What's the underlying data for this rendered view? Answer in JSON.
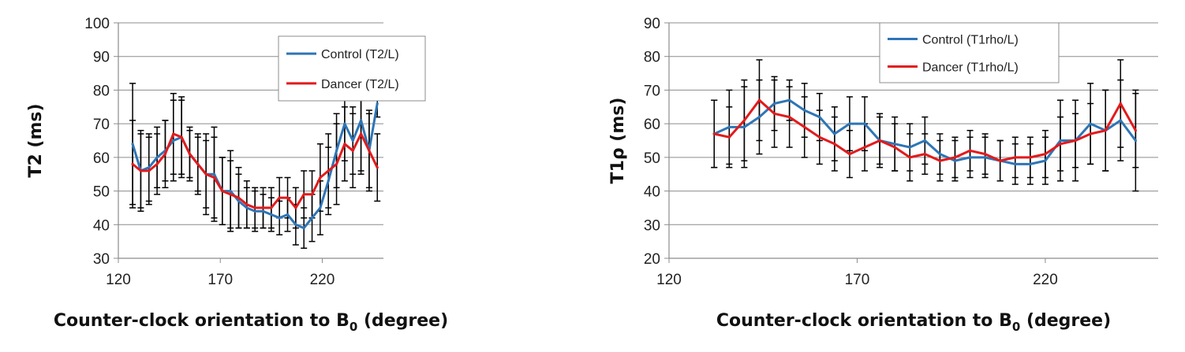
{
  "chart_data": [
    {
      "type": "line",
      "xlabel": "Counter-clock orientation to B",
      "xlabel_sub": "0",
      "xlabel_suffix": " (degree)",
      "ylabel": "T2 (ms)",
      "xlim": [
        120,
        250
      ],
      "ylim": [
        30,
        100
      ],
      "xticks": [
        120,
        170,
        220
      ],
      "yticks": [
        30,
        40,
        50,
        60,
        70,
        80,
        90,
        100
      ],
      "grid": "horizontal",
      "legend_position": "top-center",
      "series": [
        {
          "name": "Control (T2/L)",
          "color": "#2e75b6",
          "x": [
            127,
            131,
            135,
            139,
            143,
            147,
            151,
            155,
            159,
            163,
            167,
            171,
            175,
            179,
            183,
            187,
            191,
            195,
            199,
            203,
            207,
            211,
            215,
            219,
            223,
            227,
            231,
            235,
            239,
            243,
            247
          ],
          "y": [
            64,
            56,
            57,
            60,
            62,
            65,
            66,
            61,
            58,
            55,
            55,
            50,
            50,
            47,
            45,
            44,
            44,
            43,
            42,
            43,
            40,
            39,
            42,
            45,
            53,
            62,
            70,
            65,
            71,
            62,
            76
          ],
          "err": [
            18,
            11,
            10,
            9,
            9,
            12,
            12,
            7,
            8,
            12,
            14,
            10,
            12,
            8,
            6,
            6,
            5,
            5,
            5,
            5,
            6,
            6,
            7,
            8,
            10,
            11,
            11,
            10,
            15,
            12,
            4
          ]
        },
        {
          "name": "Dancer (T2/L)",
          "color": "#e31a1c",
          "x": [
            127,
            131,
            135,
            139,
            143,
            147,
            151,
            155,
            159,
            163,
            167,
            171,
            175,
            179,
            183,
            187,
            191,
            195,
            199,
            203,
            207,
            211,
            215,
            219,
            223,
            227,
            231,
            235,
            239,
            243,
            247
          ],
          "y": [
            58,
            56,
            56,
            58,
            61,
            67,
            66,
            61,
            58,
            55,
            54,
            50,
            49,
            48,
            46,
            45,
            45,
            45,
            48,
            48,
            45,
            49,
            49,
            54,
            56,
            58,
            64,
            62,
            67,
            62,
            57
          ],
          "err": [
            13,
            12,
            10,
            9,
            10,
            12,
            11,
            8,
            9,
            10,
            12,
            10,
            10,
            9,
            7,
            6,
            6,
            6,
            6,
            6,
            6,
            7,
            7,
            10,
            11,
            12,
            11,
            11,
            12,
            11,
            10
          ]
        }
      ]
    },
    {
      "type": "line",
      "xlabel": "Counter-clock orientation to B",
      "xlabel_sub": "0",
      "xlabel_suffix": " (degree)",
      "ylabel": "T1ρ (ms)",
      "xlim": [
        120,
        250
      ],
      "ylim": [
        20,
        90
      ],
      "xticks": [
        120,
        170,
        220
      ],
      "yticks": [
        20,
        30,
        40,
        50,
        60,
        70,
        80,
        90
      ],
      "grid": "horizontal",
      "legend_position": "top-right",
      "series": [
        {
          "name": "Control (T1rho/L)",
          "color": "#2e75b6",
          "x": [
            132,
            136,
            140,
            144,
            148,
            152,
            156,
            160,
            164,
            168,
            172,
            176,
            180,
            184,
            188,
            192,
            196,
            200,
            204,
            208,
            212,
            216,
            220,
            224,
            228,
            232,
            236,
            240,
            244
          ],
          "y": [
            57,
            59,
            59,
            62,
            66,
            67,
            64,
            62,
            57,
            60,
            60,
            55,
            54,
            53,
            55,
            51,
            49,
            50,
            50,
            49,
            48,
            48,
            49,
            55,
            55,
            60,
            58,
            61,
            55
          ],
          "err": [
            10,
            11,
            12,
            11,
            8,
            6,
            8,
            7,
            8,
            8,
            8,
            7,
            8,
            7,
            7,
            6,
            6,
            6,
            6,
            6,
            6,
            6,
            7,
            12,
            12,
            12,
            12,
            12,
            15
          ]
        },
        {
          "name": "Dancer (T1rho/L)",
          "color": "#e31a1c",
          "x": [
            132,
            136,
            140,
            144,
            148,
            152,
            156,
            160,
            164,
            168,
            172,
            176,
            180,
            184,
            188,
            192,
            196,
            200,
            204,
            208,
            212,
            216,
            220,
            224,
            228,
            232,
            236,
            240,
            244
          ],
          "y": [
            57,
            56,
            61,
            67,
            63,
            62,
            59,
            56,
            54,
            51,
            53,
            55,
            53,
            50,
            51,
            49,
            50,
            52,
            51,
            49,
            50,
            50,
            51,
            54,
            55,
            57,
            58,
            66,
            58
          ],
          "err": [
            10,
            9,
            12,
            12,
            10,
            9,
            9,
            8,
            8,
            7,
            7,
            8,
            7,
            7,
            6,
            6,
            6,
            6,
            6,
            6,
            6,
            6,
            7,
            8,
            8,
            9,
            12,
            13,
            11
          ]
        }
      ]
    }
  ]
}
